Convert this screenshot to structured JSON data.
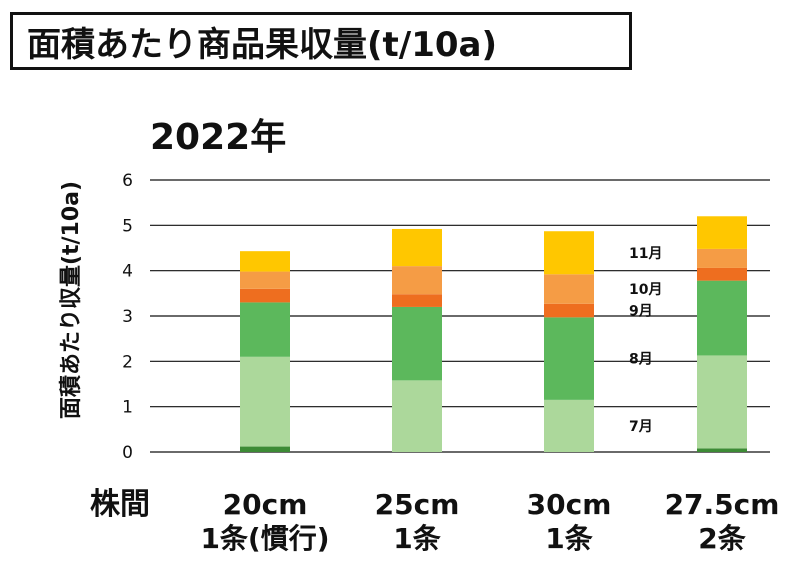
{
  "chart_data": {
    "type": "bar",
    "stacked": true,
    "title": "面積あたり商品果収量(t/10a)",
    "subtitle": "2022年",
    "ylabel": "面積あたり収量(t/10a)",
    "xlabel": "株間",
    "ylim": [
      0,
      6
    ],
    "yticks": [
      0,
      1,
      2,
      3,
      4,
      5,
      6
    ],
    "grid": true,
    "categories": [
      [
        "20cm",
        "1条(慣行)"
      ],
      [
        "25cm",
        "1条"
      ],
      [
        "30cm",
        "1条"
      ],
      [
        "27.5cm",
        "2条"
      ]
    ],
    "series": [
      {
        "name": "",
        "color": "#3d8b35",
        "values": [
          0.12,
          0.0,
          0.0,
          0.08
        ]
      },
      {
        "name": "7月",
        "color": "#acd89b",
        "values": [
          1.98,
          1.58,
          1.15,
          2.05
        ]
      },
      {
        "name": "8月",
        "color": "#5cb85c",
        "values": [
          1.2,
          1.62,
          1.82,
          1.65
        ]
      },
      {
        "name": "9月",
        "color": "#ee6e1f",
        "values": [
          0.3,
          0.28,
          0.3,
          0.28
        ]
      },
      {
        "name": "10月",
        "color": "#f59c45",
        "values": [
          0.38,
          0.62,
          0.65,
          0.42
        ]
      },
      {
        "name": "11月",
        "color": "#ffc700",
        "values": [
          0.45,
          0.82,
          0.95,
          0.72
        ]
      }
    ],
    "label_column": 2
  }
}
